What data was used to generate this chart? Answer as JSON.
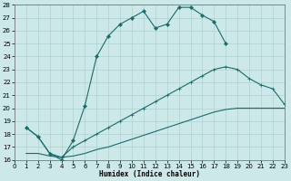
{
  "xlabel": "Humidex (Indice chaleur)",
  "bg_color": "#cce8e8",
  "grid_color": "#b0d0d0",
  "line_color": "#1a6b6b",
  "xlim": [
    0,
    23
  ],
  "ylim": [
    16,
    28
  ],
  "yticks": [
    16,
    17,
    18,
    19,
    20,
    21,
    22,
    23,
    24,
    25,
    26,
    27,
    28
  ],
  "xticks": [
    0,
    1,
    2,
    3,
    4,
    5,
    6,
    7,
    8,
    9,
    10,
    11,
    12,
    13,
    14,
    15,
    16,
    17,
    18,
    19,
    20,
    21,
    22,
    23
  ],
  "line1_x": [
    1,
    2,
    3,
    4,
    5,
    6,
    7,
    8,
    9,
    10,
    11,
    12,
    13,
    14,
    15,
    16,
    17,
    18
  ],
  "line1_y": [
    18.5,
    17.8,
    16.5,
    16.0,
    17.5,
    20.2,
    24.0,
    25.6,
    26.5,
    27.0,
    27.5,
    26.2,
    26.5,
    27.8,
    27.8,
    27.2,
    26.7,
    25.0
  ],
  "line2_x": [
    1,
    2,
    3,
    4,
    5,
    6,
    7,
    8,
    9,
    10,
    11,
    12,
    13,
    14,
    15,
    16,
    17,
    18,
    19,
    20,
    21,
    22,
    23
  ],
  "line2_y": [
    18.5,
    17.8,
    16.5,
    16.2,
    17.0,
    17.5,
    18.0,
    18.5,
    19.0,
    19.5,
    20.0,
    20.5,
    21.0,
    21.5,
    22.0,
    22.5,
    23.0,
    23.2,
    23.0,
    22.3,
    21.8,
    21.5,
    20.3
  ],
  "line3_x": [
    1,
    2,
    3,
    4,
    5,
    6,
    7,
    8,
    9,
    10,
    11,
    12,
    13,
    14,
    15,
    16,
    17,
    18,
    19,
    20,
    21,
    22,
    23
  ],
  "line3_y": [
    16.5,
    16.5,
    16.3,
    16.2,
    16.3,
    16.5,
    16.8,
    17.0,
    17.3,
    17.6,
    17.9,
    18.2,
    18.5,
    18.8,
    19.1,
    19.4,
    19.7,
    19.9,
    20.0,
    20.0,
    20.0,
    20.0,
    20.0
  ]
}
